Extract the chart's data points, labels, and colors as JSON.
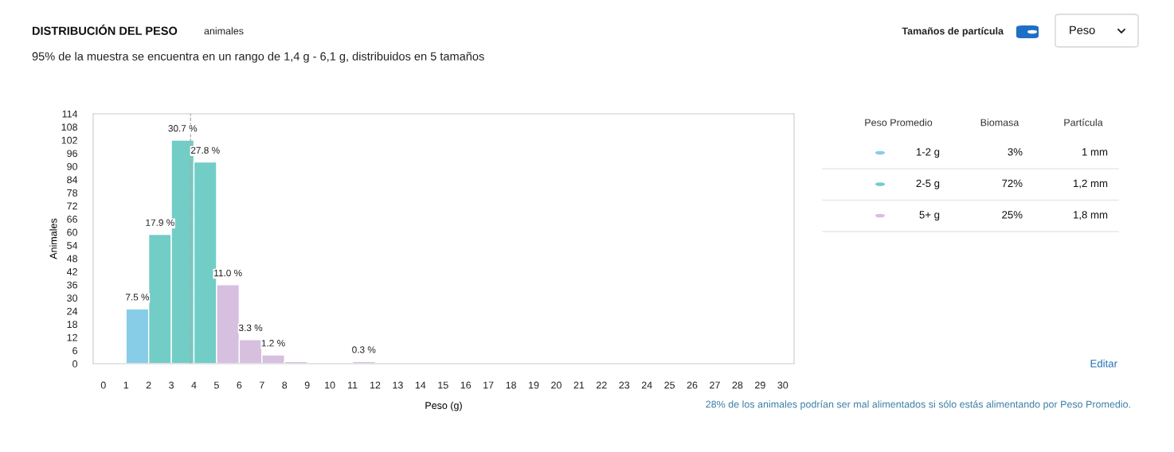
{
  "chart_data": [
    {
      "type": "histogram",
      "title": "DISTRIBUCIÓN DEL PESO",
      "subtitle": "95% de la muestra se encuentra en un rango de 1,4 g - 6,1 g, distribuidos en 5 tamaños",
      "xlabel": "Peso (g)",
      "ylabel": "Animales",
      "bins": [
        0,
        1,
        2,
        3,
        4,
        5,
        6,
        7,
        8,
        9,
        10,
        11,
        12,
        13,
        14,
        15,
        16,
        17,
        18,
        19,
        20,
        21,
        22,
        23,
        24,
        25,
        26,
        27,
        28,
        29,
        30
      ],
      "values": [
        0,
        25,
        59,
        102,
        92,
        36,
        11,
        4,
        1,
        0,
        0,
        1,
        0,
        0,
        0,
        0,
        0,
        0,
        0,
        0,
        0,
        0,
        0,
        0,
        0,
        0,
        0,
        0,
        0,
        0
      ],
      "colors": [
        "#87cde8",
        "#87cde8",
        "#72cdc6",
        "#72cdc6",
        "#72cdc6",
        "#d7bfe0",
        "#d7bfe0",
        "#d7bfe0",
        "#d7bfe0",
        "#d7bfe0",
        "#d7bfe0",
        "#d7bfe0",
        "#d7bfe0",
        "#d7bfe0",
        "#d7bfe0",
        "#d7bfe0",
        "#d7bfe0",
        "#d7bfe0",
        "#d7bfe0",
        "#d7bfe0",
        "#d7bfe0",
        "#d7bfe0",
        "#d7bfe0",
        "#d7bfe0",
        "#d7bfe0",
        "#d7bfe0",
        "#d7bfe0",
        "#d7bfe0",
        "#d7bfe0",
        "#d7bfe0"
      ],
      "xlim": [
        -0.45,
        30.5
      ],
      "xticks": [
        0,
        1,
        2,
        3,
        4,
        5,
        6,
        7,
        8,
        9,
        10,
        11,
        12,
        13,
        14,
        15,
        16,
        17,
        18,
        19,
        20,
        21,
        22,
        23,
        24,
        25,
        26,
        27,
        28,
        29,
        30
      ],
      "ylim": [
        0,
        114
      ],
      "yticks": [
        0,
        6,
        12,
        18,
        24,
        30,
        36,
        42,
        48,
        54,
        60,
        66,
        72,
        78,
        84,
        90,
        96,
        102,
        108,
        114
      ],
      "ref_lines": [
        {
          "axis": "x",
          "value": 3.85,
          "color": "#aaaaaa",
          "line_style": "dashed"
        }
      ],
      "grid": false,
      "legend": false,
      "annotations": [
        "animales",
        "Tamaños de partícula",
        "Peso",
        "28% de los animales podrían ser mal alimentados si sólo estás alimentando por Peso Promedio.",
        {
          "text": "7.5 %",
          "x": 1.5,
          "y": 25
        },
        {
          "text": "17.9 %",
          "x": 2.5,
          "y": 59
        },
        {
          "text": "30.7 %",
          "x": 3.5,
          "y": 102
        },
        {
          "text": "27.8 %",
          "x": 4.5,
          "y": 92
        },
        {
          "text": "11.0 %",
          "x": 5.5,
          "y": 36
        },
        {
          "text": "3.3 %",
          "x": 6.5,
          "y": 11
        },
        {
          "text": "1.2 %",
          "x": 7.5,
          "y": 4
        },
        {
          "text": "0.3 %",
          "x": 11.5,
          "y": 1
        }
      ]
    },
    {
      "type": "other",
      "categories": [
        "1-2 g",
        "2-5 g",
        "5+ g"
      ],
      "colors": [
        "#87cde8",
        "#72cdc6",
        "#d7bfe0"
      ],
      "annotations": [
        "Peso Promedio",
        "Biomasa",
        "Partícula",
        "3%",
        "1 mm",
        "72%",
        "1,2 mm",
        "25%",
        "1,8 mm",
        "Editar"
      ]
    }
  ]
}
